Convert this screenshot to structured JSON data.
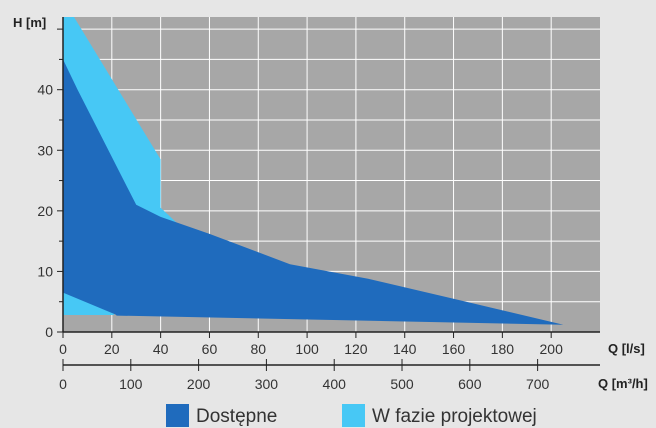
{
  "colors": {
    "background": "#e6e6e6",
    "plot_background": "#a7a7a7",
    "grid": "#ffffff",
    "available": "#1f6bbd",
    "in_design": "#47c8f5",
    "axis": "#222222"
  },
  "chart_data": {
    "type": "area",
    "xlabel": "Q [l/s]",
    "ylabel": "H [m]",
    "secondary_xlabel": "Q [m³/h]",
    "xlim": [
      0,
      220
    ],
    "ylim": [
      0,
      52
    ],
    "grid": true,
    "legend_position": "bottom",
    "x_ticks": [
      0,
      20,
      40,
      60,
      80,
      100,
      120,
      140,
      160,
      180,
      200
    ],
    "y_ticks": [
      0,
      10,
      20,
      30,
      40
    ],
    "secondary_x_ticks": [
      0,
      100,
      200,
      300,
      400,
      500,
      600,
      700
    ],
    "secondary_x_units_per_primary": 3.6,
    "series": [
      {
        "name": "W fazie projektowej",
        "color": "#47c8f5",
        "polygons": [
          [
            [
              0,
              52
            ],
            [
              4.5,
              52
            ],
            [
              40,
              28.5
            ],
            [
              40,
              20.5
            ],
            [
              48,
              17.5
            ],
            [
              22,
              2.8
            ],
            [
              0,
              7
            ]
          ],
          [
            [
              0,
              11
            ],
            [
              10,
              11
            ],
            [
              21,
              2.8
            ],
            [
              0,
              2.8
            ]
          ]
        ]
      },
      {
        "name": "Dostępne",
        "color": "#1f6bbd",
        "polygons": [
          [
            [
              0,
              45
            ],
            [
              6,
              40
            ],
            [
              30,
              21
            ],
            [
              40,
              19
            ],
            [
              60,
              16.2
            ],
            [
              93,
              11.2
            ],
            [
              125,
              8.8
            ],
            [
              160,
              5.5
            ],
            [
              205,
              1.2
            ],
            [
              22,
              2.7
            ],
            [
              13,
              6
            ],
            [
              0,
              7
            ],
            [
              0,
              11
            ],
            [
              11,
              10.8
            ],
            [
              22,
              2.8
            ],
            [
              0,
              6.5
            ]
          ]
        ]
      }
    ]
  },
  "legend": {
    "items": [
      {
        "label": "Dostępne",
        "color": "#1f6bbd"
      },
      {
        "label": "W fazie projektowej",
        "color": "#47c8f5"
      }
    ]
  }
}
